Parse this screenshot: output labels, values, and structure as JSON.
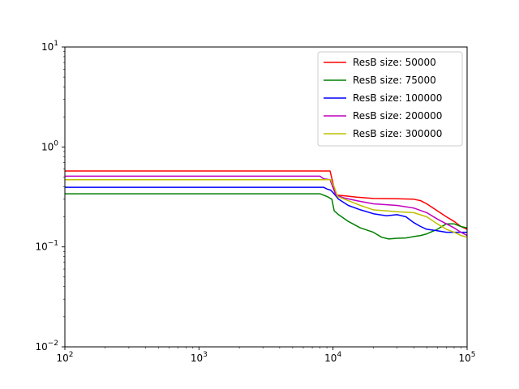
{
  "chart_data": {
    "type": "line",
    "xscale": "log",
    "yscale": "log",
    "xlim": [
      100,
      100000
    ],
    "ylim": [
      0.01,
      10
    ],
    "grid": false,
    "legend_position": "top-right",
    "x_ticks": [
      {
        "base": "10",
        "exp": "2"
      },
      {
        "base": "10",
        "exp": "3"
      },
      {
        "base": "10",
        "exp": "4"
      },
      {
        "base": "10",
        "exp": "5"
      }
    ],
    "y_ticks": [
      {
        "base": "10",
        "exp": "−2",
        "value": 0.01
      },
      {
        "base": "10",
        "exp": "−1",
        "value": 0.1
      },
      {
        "base": "10",
        "exp": "0",
        "value": 1
      },
      {
        "base": "10",
        "exp": "1",
        "value": 10
      }
    ],
    "series": [
      {
        "name": "ResB size: 50000",
        "color": "#ff0000",
        "points": [
          [
            100,
            0.575
          ],
          [
            9500,
            0.575
          ],
          [
            10500,
            0.33
          ],
          [
            12000,
            0.325
          ],
          [
            15000,
            0.315
          ],
          [
            20000,
            0.305
          ],
          [
            30000,
            0.303
          ],
          [
            40000,
            0.3
          ],
          [
            45000,
            0.29
          ],
          [
            50000,
            0.27
          ],
          [
            60000,
            0.23
          ],
          [
            70000,
            0.2
          ],
          [
            80000,
            0.18
          ],
          [
            90000,
            0.16
          ],
          [
            100000,
            0.15
          ]
        ]
      },
      {
        "name": "ResB size: 75000",
        "color": "#008000",
        "points": [
          [
            100,
            0.34
          ],
          [
            8000,
            0.34
          ],
          [
            9000,
            0.32
          ],
          [
            9800,
            0.3
          ],
          [
            10200,
            0.23
          ],
          [
            11000,
            0.21
          ],
          [
            13000,
            0.18
          ],
          [
            16000,
            0.155
          ],
          [
            20000,
            0.14
          ],
          [
            23000,
            0.125
          ],
          [
            26000,
            0.12
          ],
          [
            30000,
            0.122
          ],
          [
            35000,
            0.123
          ],
          [
            40000,
            0.127
          ],
          [
            45000,
            0.13
          ],
          [
            50000,
            0.135
          ],
          [
            60000,
            0.15
          ],
          [
            70000,
            0.17
          ],
          [
            80000,
            0.17
          ],
          [
            90000,
            0.16
          ],
          [
            100000,
            0.155
          ]
        ]
      },
      {
        "name": "ResB size: 100000",
        "color": "#0000ff",
        "points": [
          [
            100,
            0.395
          ],
          [
            8500,
            0.395
          ],
          [
            9000,
            0.38
          ],
          [
            9600,
            0.37
          ],
          [
            10000,
            0.35
          ],
          [
            11000,
            0.3
          ],
          [
            13000,
            0.26
          ],
          [
            16000,
            0.235
          ],
          [
            20000,
            0.215
          ],
          [
            25000,
            0.205
          ],
          [
            30000,
            0.21
          ],
          [
            35000,
            0.2
          ],
          [
            40000,
            0.175
          ],
          [
            45000,
            0.16
          ],
          [
            50000,
            0.15
          ],
          [
            60000,
            0.145
          ],
          [
            70000,
            0.14
          ],
          [
            80000,
            0.14
          ],
          [
            90000,
            0.14
          ],
          [
            100000,
            0.14
          ]
        ]
      },
      {
        "name": "ResB size: 200000",
        "color": "#bf00bf",
        "points": [
          [
            100,
            0.51
          ],
          [
            8000,
            0.51
          ],
          [
            8500,
            0.48
          ],
          [
            9500,
            0.47
          ],
          [
            10500,
            0.33
          ],
          [
            12000,
            0.31
          ],
          [
            15000,
            0.29
          ],
          [
            20000,
            0.27
          ],
          [
            30000,
            0.26
          ],
          [
            40000,
            0.245
          ],
          [
            50000,
            0.22
          ],
          [
            60000,
            0.19
          ],
          [
            70000,
            0.17
          ],
          [
            80000,
            0.155
          ],
          [
            90000,
            0.14
          ],
          [
            100000,
            0.13
          ]
        ]
      },
      {
        "name": "ResB size: 300000",
        "color": "#bfbf00",
        "points": [
          [
            100,
            0.47
          ],
          [
            9600,
            0.47
          ],
          [
            10200,
            0.4
          ],
          [
            10800,
            0.32
          ],
          [
            13000,
            0.29
          ],
          [
            16000,
            0.26
          ],
          [
            20000,
            0.235
          ],
          [
            30000,
            0.225
          ],
          [
            40000,
            0.22
          ],
          [
            50000,
            0.2
          ],
          [
            60000,
            0.17
          ],
          [
            70000,
            0.15
          ],
          [
            80000,
            0.14
          ],
          [
            90000,
            0.13
          ],
          [
            100000,
            0.125
          ]
        ]
      }
    ]
  }
}
